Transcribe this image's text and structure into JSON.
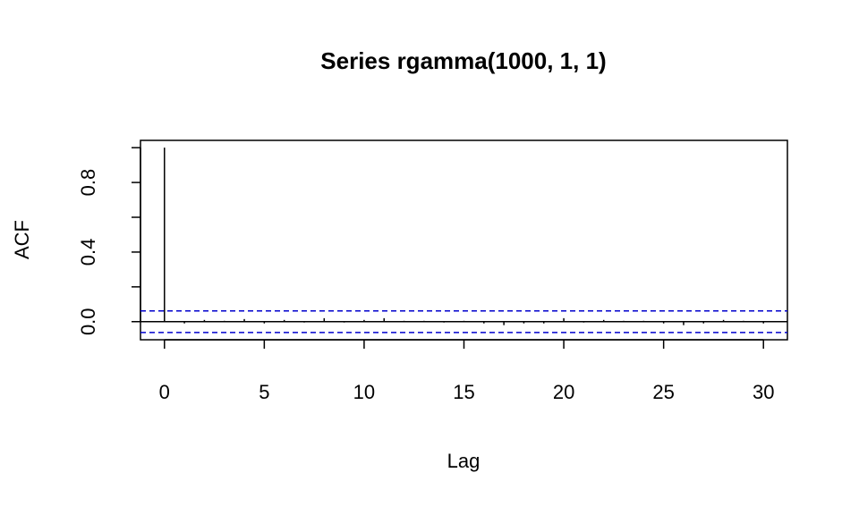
{
  "chart_data": {
    "type": "acf",
    "title": "Series  rgamma(1000, 1, 1)",
    "x_label": "Lag",
    "y_label": "ACF",
    "x": [
      0,
      1,
      2,
      3,
      4,
      5,
      6,
      7,
      8,
      9,
      10,
      11,
      12,
      13,
      14,
      15,
      16,
      17,
      18,
      19,
      20,
      21,
      22,
      23,
      24,
      25,
      26,
      27,
      28,
      29,
      30
    ],
    "values": [
      1,
      -0.01,
      0.01,
      0.005,
      0.015,
      -0.01,
      0.01,
      -0.005,
      0.02,
      -0.005,
      0.01,
      0.02,
      0.005,
      0.005,
      -0.005,
      0.005,
      -0.01,
      -0.02,
      -0.01,
      -0.01,
      0.02,
      -0.005,
      0.01,
      0.005,
      0.005,
      -0.01,
      -0.02,
      -0.01,
      0.01,
      0.005,
      -0.01
    ],
    "color": "#000000",
    "xlim": [
      -1.2,
      31.2
    ],
    "ylim": [
      -0.104,
      1.042
    ],
    "xticks": [
      0,
      5,
      10,
      15,
      20,
      25,
      30
    ],
    "yticks": [
      {
        "value": 0,
        "label": "0.0"
      },
      {
        "value": 0.4,
        "label": "0.4"
      },
      {
        "value": 0.8,
        "label": "0.8"
      }
    ],
    "y_minor_ticks": [
      0.2,
      0.6,
      1.0
    ],
    "confidence_lines": [
      0.062,
      -0.062
    ],
    "confidence_color": "#0000cd"
  }
}
